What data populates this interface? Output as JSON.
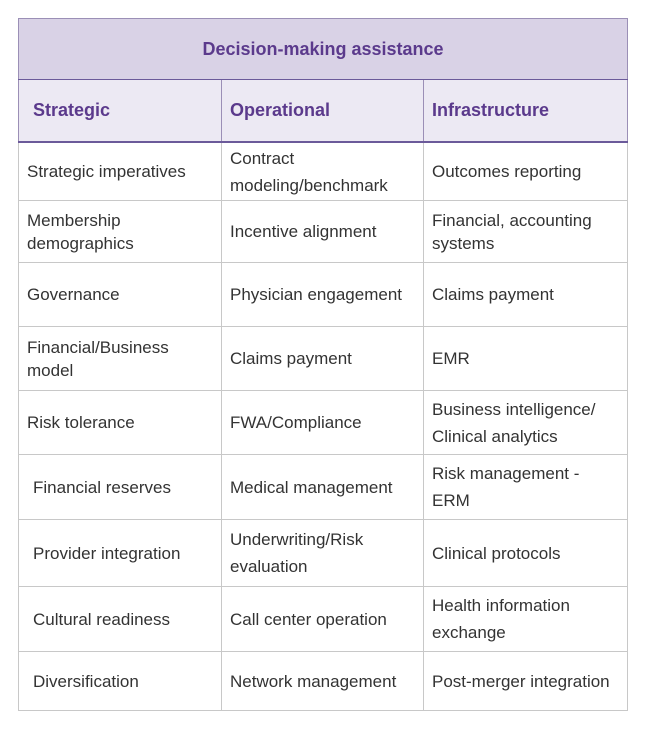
{
  "table": {
    "title": "Decision-making assistance",
    "headers": [
      "Strategic",
      "Operational",
      "Infrastructure"
    ],
    "rows": [
      [
        "Strategic imperatives",
        "Contract modeling/benchmark",
        "Outcomes reporting"
      ],
      [
        "Membership demographics",
        "Incentive alignment",
        "Financial, accounting systems"
      ],
      [
        "Governance",
        "Physician engagement",
        "Claims payment"
      ],
      [
        "Financial/Business model",
        "Claims payment",
        "EMR"
      ],
      [
        "Risk tolerance",
        "FWA/Compliance",
        "Business intelligence/ Clinical analytics"
      ],
      [
        "Financial reserves",
        "Medical management",
        "Risk management - ERM"
      ],
      [
        "Provider integration",
        "Underwriting/Risk evaluation",
        "Clinical protocols"
      ],
      [
        "Cultural readiness",
        "Call center operation",
        "Health information exchange"
      ],
      [
        "Diversification",
        "Network management",
        "Post-merger integration"
      ]
    ]
  },
  "colors": {
    "title_background": "#d9d2e6",
    "header_background": "#ece9f3",
    "heading_text": "#5b3a8c",
    "body_text": "#333333",
    "grid_line": "#c8c8c8"
  }
}
